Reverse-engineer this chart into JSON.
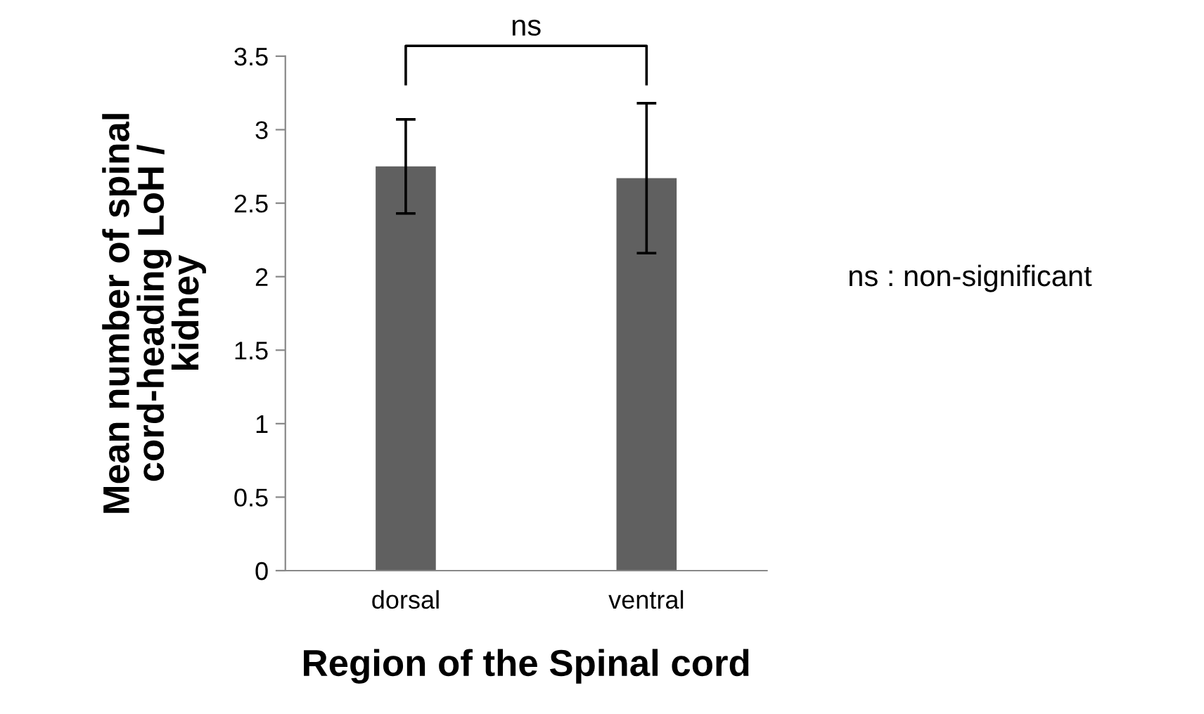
{
  "chart_data": {
    "type": "bar",
    "categories": [
      "dorsal",
      "ventral"
    ],
    "values": [
      2.75,
      2.67
    ],
    "errors": [
      [
        2.43,
        3.07
      ],
      [
        2.16,
        3.18
      ]
    ],
    "color": "#606060",
    "xlabel": "Region of the Spinal cord",
    "ylabel": "Mean number of spinal\ncord-heading LoH /\nkidney",
    "ylim": [
      0,
      3.5
    ],
    "yticks": [
      0,
      0.5,
      1,
      1.5,
      2,
      2.5,
      3,
      3.5
    ],
    "annotations": [
      "ns",
      "ns : non-significant"
    ],
    "grid": false,
    "legend": false
  }
}
